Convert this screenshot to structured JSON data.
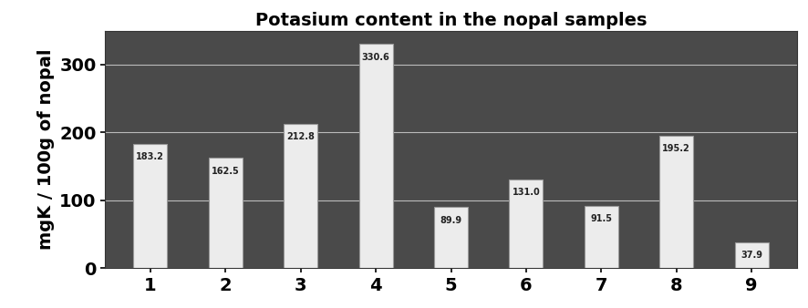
{
  "chart_data": {
    "type": "bar",
    "title": "Potasium content in the nopal samples",
    "y_label": "mgK / 100g of nopal",
    "categories": [
      "1",
      "2",
      "3",
      "4",
      "5",
      "6",
      "7",
      "8",
      "9"
    ],
    "values": [
      183.2,
      162.5,
      212.8,
      330.6,
      89.9,
      131.0,
      91.5,
      195.2,
      37.9
    ],
    "color": "#ececec",
    "ylim": [
      0,
      350
    ],
    "yticks": [
      0,
      100,
      200,
      300
    ],
    "grid": true,
    "data_labels": true
  }
}
